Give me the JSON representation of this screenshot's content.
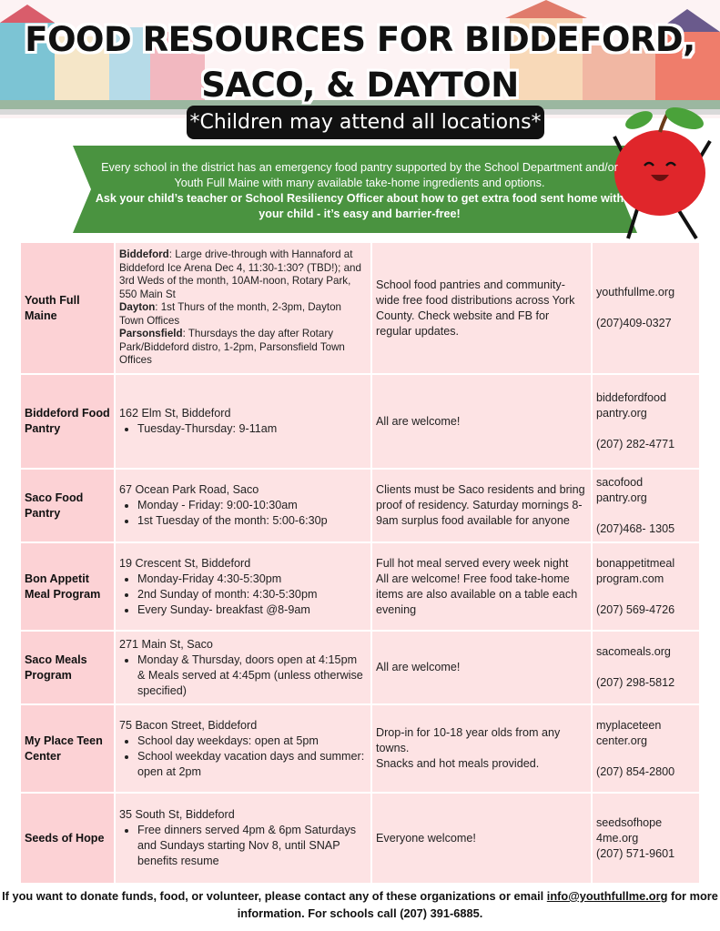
{
  "header": {
    "title_line1": "FOOD RESOURCES FOR BIDDEFORD,",
    "title_line2": "SACO, & DAYTON",
    "subtitle": "*Children may attend all locations*"
  },
  "banner": {
    "text": "Every school in the district has an emergency food pantry supported by the School Department and/or Youth Full Maine with many available take-home ingredients and options.",
    "emphasis": "Ask your child’s teacher or School Resiliency Officer about how to get extra food sent home with your child - it’s easy and barrier-free!"
  },
  "table": {
    "rows": [
      {
        "name": "Youth Full Maine",
        "details": [
          {
            "label": "Biddeford",
            "text": ": Large drive-through with Hannaford at Biddeford Ice Arena Dec 4, 11:30-1:30? (TBD!); and 3rd Weds of the month, 10AM-noon, Rotary Park, 550 Main St"
          },
          {
            "label": "Dayton",
            "text": ": 1st Thurs of the month, 2-3pm, Dayton Town Offices"
          },
          {
            "label": "Parsonsfield",
            "text": ": Thursdays the day after Rotary Park/Biddeford distro, 1-2pm, Parsonsfield Town Offices"
          }
        ],
        "description": [
          "School food pantries and community-wide free food distributions across York County. Check website and FB for regular updates."
        ],
        "website": [
          "youthfullme.org"
        ],
        "phone": "(207)409-0327"
      },
      {
        "name": "Biddeford Food Pantry",
        "address": "162 Elm St, Biddeford",
        "items": [
          "Tuesday-Thursday: 9-11am"
        ],
        "description": [
          "All are welcome!"
        ],
        "website": [
          "biddefordfood",
          "pantry.org"
        ],
        "phone": "(207) 282-4771"
      },
      {
        "name": "Saco Food Pantry",
        "address": "67 Ocean Park Road, Saco",
        "items": [
          "Monday - Friday: 9:00-10:30am",
          "1st Tuesday of the month: 5:00-6:30p"
        ],
        "description": [
          "Clients must be Saco residents and bring proof of residency. Saturday mornings 8-9am surplus food available for anyone"
        ],
        "website": [
          "sacofood",
          "pantry.org"
        ],
        "phone": "(207)468- 1305"
      },
      {
        "name": "Bon Appetit Meal Program",
        "address": "19 Crescent St, Biddeford",
        "items": [
          "Monday-Friday 4:30-5:30pm",
          "2nd Sunday of month: 4:30-5:30pm",
          "Every Sunday- breakfast @8-9am"
        ],
        "description": [
          "Full hot meal served every week night",
          "All are welcome! Free food take-home items are also available on a table each evening"
        ],
        "website": [
          "bonappetitmeal",
          "program.com"
        ],
        "phone": "(207) 569-4726"
      },
      {
        "name": "Saco Meals Program",
        "address": "271 Main St, Saco",
        "items": [
          "Monday & Thursday, doors open at 4:15pm & Meals served at 4:45pm (unless otherwise specified)"
        ],
        "description": [
          "All are welcome!"
        ],
        "website": [
          "sacomeals.org"
        ],
        "phone": "(207) 298-5812"
      },
      {
        "name": "My Place Teen Center",
        "address": "75 Bacon Street, Biddeford",
        "items": [
          "School day weekdays: open at 5pm",
          "School weekday vacation days and summer: open at 2pm"
        ],
        "description": [
          "Drop-in for 10-18 year olds from any towns.",
          "Snacks and hot meals provided."
        ],
        "website": [
          "myplaceteen",
          "center.org"
        ],
        "phone": "(207) 854-2800"
      },
      {
        "name": "Seeds of Hope",
        "address": "35 South St, Biddeford",
        "items": [
          "Free dinners served 4pm & 6pm Saturdays and Sundays starting Nov 8, until SNAP benefits resume"
        ],
        "description": [
          "Everyone welcome!"
        ],
        "website": [
          "seedsofhope",
          "4me.org"
        ],
        "phone": "(207) 571-9601"
      }
    ]
  },
  "footer": {
    "before": "If you want to donate funds, food, or volunteer, please contact any of these organizations or email ",
    "email": "info@youthfullme.org",
    "after": " for more information. For schools call (207) 391-6885."
  }
}
